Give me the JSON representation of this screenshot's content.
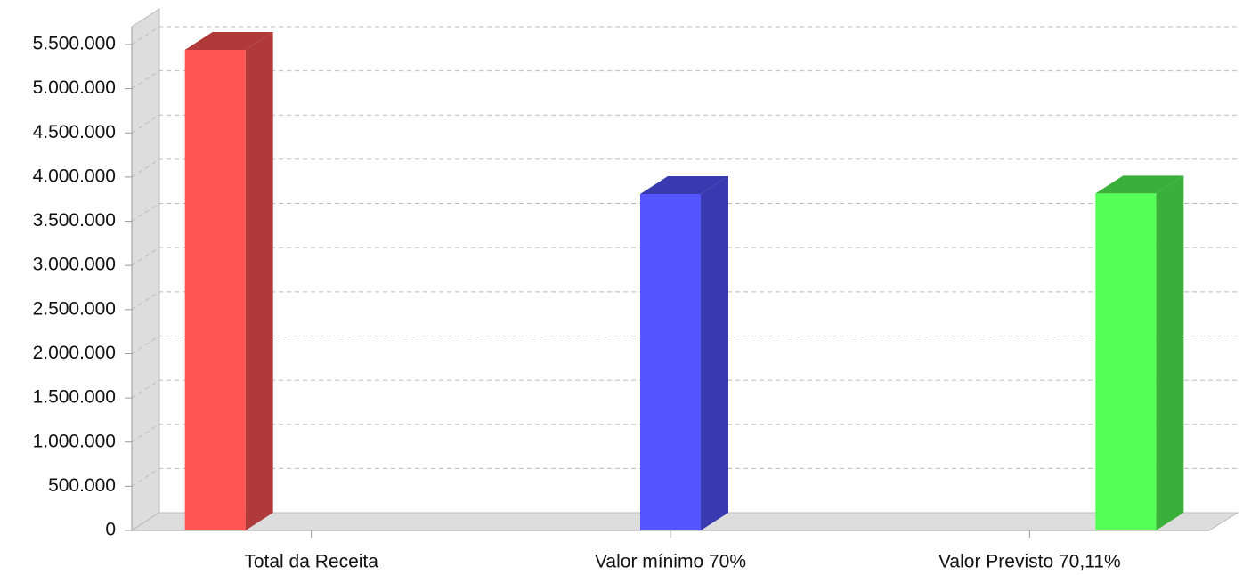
{
  "chart_data": {
    "type": "bar3d",
    "categories": [
      "Total da Receita",
      "Valor mínimo 70%",
      "Valor Previsto 70,11%"
    ],
    "values": [
      5440000,
      3808000,
      3814000
    ],
    "colors": [
      "#ff5555",
      "#5555ff",
      "#55ff55"
    ],
    "side_colors": [
      "#b03a3a",
      "#3a3ab0",
      "#3ab03a"
    ],
    "ylim": [
      0,
      5500000
    ],
    "yticks": [
      0,
      {
        "value": 500000,
        "label": "500.000"
      },
      {
        "value": 1000000,
        "label": "1.000.000"
      },
      {
        "value": 1500000,
        "label": "1.500.000"
      },
      {
        "value": 2000000,
        "label": "2.000.000"
      },
      {
        "value": 2500000,
        "label": "2.500.000"
      },
      {
        "value": 3000000,
        "label": "3.000.000"
      },
      {
        "value": 3500000,
        "label": "3.500.000"
      },
      {
        "value": 4000000,
        "label": "4.000.000"
      },
      {
        "value": 4500000,
        "label": "4.500.000"
      },
      {
        "value": 5000000,
        "label": "5.000.000"
      },
      {
        "value": 5500000,
        "label": "5.500.000"
      }
    ],
    "grid": true
  }
}
